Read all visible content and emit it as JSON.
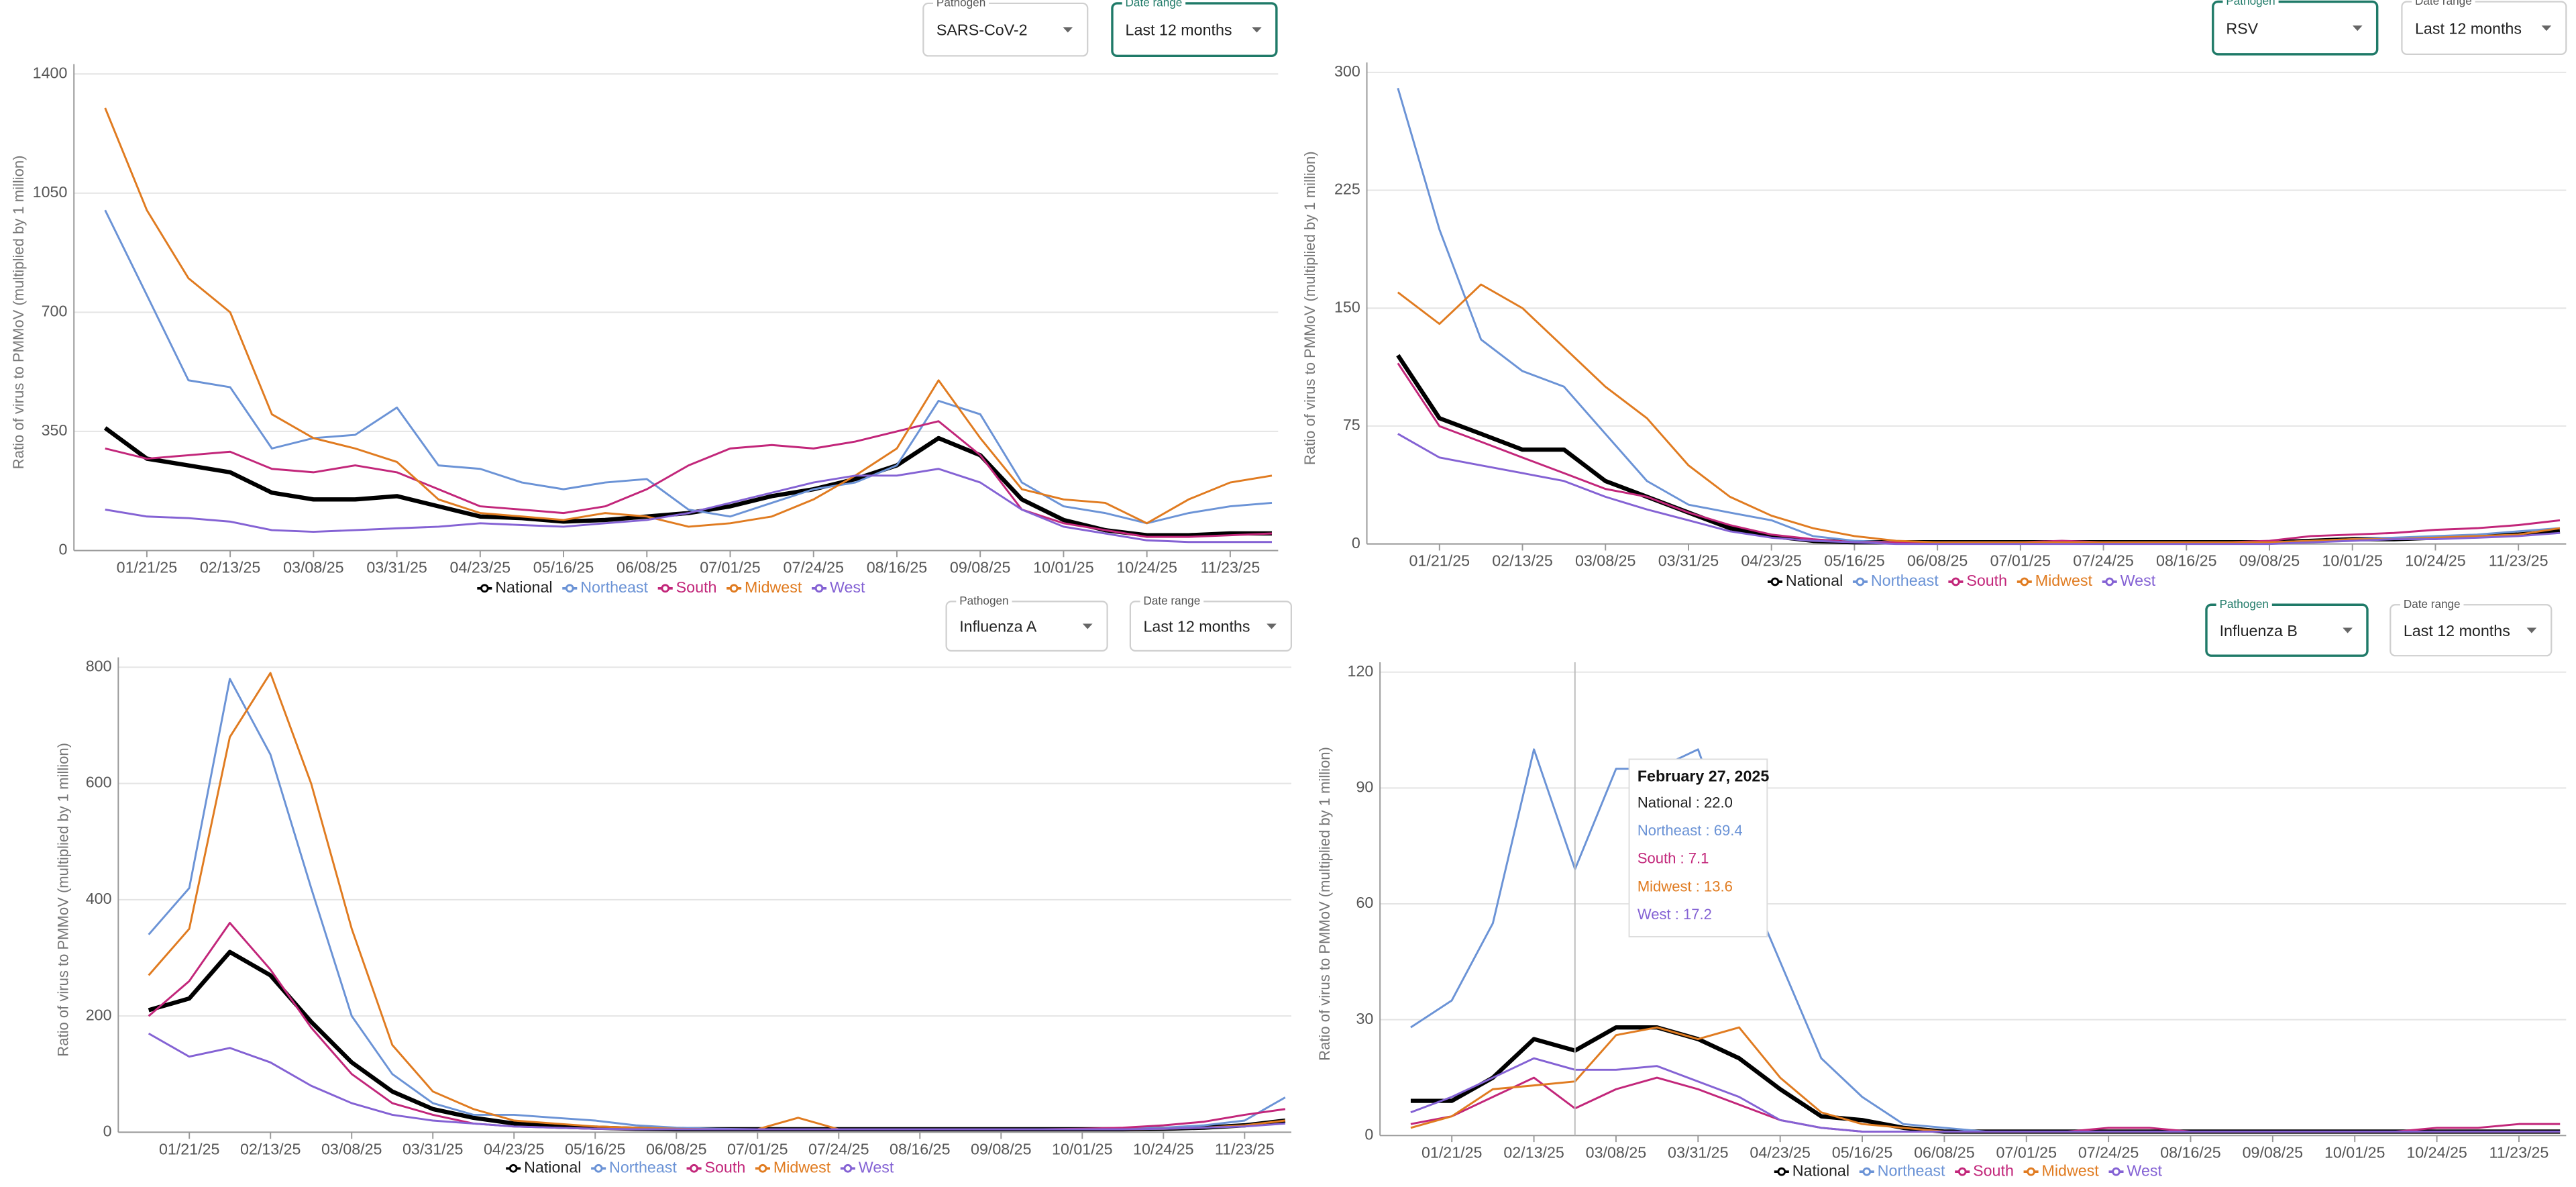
{
  "chart_data": [
    {
      "type": "line",
      "y_label": "Ratio of virus to PMMoV (multiplied by 1 million)",
      "controls": [
        {
          "label": "Pathogen",
          "value": "SARS-CoV-2",
          "focused": false
        },
        {
          "label": "Date range",
          "value": "Last 12 months",
          "focused": true
        }
      ],
      "categories": [
        null,
        "01/21/25",
        null,
        "02/13/25",
        null,
        "03/08/25",
        null,
        "03/31/25",
        null,
        "04/23/25",
        null,
        "05/16/25",
        null,
        "06/08/25",
        null,
        "07/01/25",
        null,
        "07/24/25",
        null,
        "08/16/25",
        null,
        "09/08/25",
        null,
        "10/01/25",
        null,
        "10/24/25",
        null,
        "11/23/25",
        null
      ],
      "ylim": [
        0,
        1400
      ],
      "yticks": [
        0,
        350,
        700,
        1050,
        1400
      ],
      "grid": true,
      "series": [
        {
          "name": "National",
          "color": "#000000",
          "values": [
            360,
            270,
            250,
            230,
            170,
            150,
            150,
            160,
            130,
            100,
            95,
            85,
            90,
            100,
            110,
            130,
            160,
            180,
            210,
            250,
            330,
            280,
            150,
            90,
            60,
            45,
            45,
            50,
            50
          ]
        },
        {
          "name": "Northeast",
          "color": "#6b93d6",
          "values": [
            1000,
            750,
            500,
            480,
            300,
            330,
            340,
            420,
            250,
            240,
            200,
            180,
            200,
            210,
            120,
            100,
            140,
            180,
            200,
            250,
            440,
            400,
            200,
            130,
            110,
            80,
            110,
            130,
            140
          ]
        },
        {
          "name": "South",
          "color": "#c2267a",
          "values": [
            300,
            270,
            280,
            290,
            240,
            230,
            250,
            230,
            180,
            130,
            120,
            110,
            130,
            180,
            250,
            300,
            310,
            300,
            320,
            350,
            380,
            280,
            120,
            80,
            60,
            40,
            40,
            45,
            50
          ]
        },
        {
          "name": "Midwest",
          "color": "#e07b20",
          "values": [
            1300,
            1000,
            800,
            700,
            400,
            330,
            300,
            260,
            150,
            110,
            100,
            90,
            110,
            100,
            70,
            80,
            100,
            150,
            220,
            300,
            500,
            330,
            180,
            150,
            140,
            80,
            150,
            200,
            220
          ]
        },
        {
          "name": "West",
          "color": "#8462d4",
          "values": [
            120,
            100,
            95,
            85,
            60,
            55,
            60,
            65,
            70,
            80,
            75,
            70,
            80,
            90,
            110,
            140,
            170,
            200,
            220,
            220,
            240,
            200,
            120,
            70,
            50,
            30,
            25,
            25,
            25
          ]
        }
      ]
    },
    {
      "type": "line",
      "y_label": "Ratio of virus to PMMoV (multiplied by 1 million)",
      "controls": [
        {
          "label": "Pathogen",
          "value": "RSV",
          "focused": true
        },
        {
          "label": "Date range",
          "value": "Last 12 months",
          "focused": false
        }
      ],
      "categories": [
        null,
        "01/21/25",
        null,
        "02/13/25",
        null,
        "03/08/25",
        null,
        "03/31/25",
        null,
        "04/23/25",
        null,
        "05/16/25",
        null,
        "06/08/25",
        null,
        "07/01/25",
        null,
        "07/24/25",
        null,
        "08/16/25",
        null,
        "09/08/25",
        null,
        "10/01/25",
        null,
        "10/24/25",
        null,
        "11/23/25",
        null
      ],
      "ylim": [
        0,
        300
      ],
      "yticks": [
        0,
        75,
        150,
        225,
        300
      ],
      "grid": true,
      "series": [
        {
          "name": "National",
          "color": "#000000",
          "values": [
            120,
            80,
            70,
            60,
            60,
            40,
            30,
            20,
            10,
            5,
            2,
            1,
            1,
            1,
            1,
            1,
            1,
            1,
            1,
            1,
            1,
            1,
            2,
            3,
            3,
            4,
            5,
            6,
            8
          ]
        },
        {
          "name": "Northeast",
          "color": "#6b93d6",
          "values": [
            290,
            200,
            130,
            110,
            100,
            70,
            40,
            25,
            20,
            15,
            5,
            2,
            1,
            1,
            1,
            1,
            1,
            1,
            1,
            1,
            1,
            1,
            2,
            3,
            4,
            5,
            6,
            8,
            10
          ]
        },
        {
          "name": "South",
          "color": "#c2267a",
          "values": [
            115,
            75,
            65,
            55,
            45,
            35,
            30,
            20,
            12,
            6,
            3,
            1,
            1,
            1,
            1,
            1,
            2,
            1,
            1,
            1,
            1,
            2,
            5,
            6,
            7,
            9,
            10,
            12,
            15
          ]
        },
        {
          "name": "Midwest",
          "color": "#e07b20",
          "values": [
            160,
            140,
            165,
            150,
            125,
            100,
            80,
            50,
            30,
            18,
            10,
            5,
            2,
            1,
            1,
            1,
            1,
            1,
            1,
            1,
            1,
            1,
            2,
            3,
            3,
            4,
            5,
            6,
            10
          ]
        },
        {
          "name": "West",
          "color": "#8462d4",
          "values": [
            70,
            55,
            50,
            45,
            40,
            30,
            22,
            15,
            8,
            4,
            2,
            1,
            0,
            0,
            0,
            0,
            0,
            0,
            0,
            0,
            0,
            0,
            1,
            2,
            3,
            3,
            4,
            5,
            7
          ]
        }
      ]
    },
    {
      "type": "line",
      "y_label": "Ratio of virus to PMMoV (multiplied by 1 million)",
      "controls": [
        {
          "label": "Pathogen",
          "value": "Influenza A",
          "focused": false
        },
        {
          "label": "Date range",
          "value": "Last 12 months",
          "focused": false
        }
      ],
      "categories": [
        null,
        "01/21/25",
        null,
        "02/13/25",
        null,
        "03/08/25",
        null,
        "03/31/25",
        null,
        "04/23/25",
        null,
        "05/16/25",
        null,
        "06/08/25",
        null,
        "07/01/25",
        null,
        "07/24/25",
        null,
        "08/16/25",
        null,
        "09/08/25",
        null,
        "10/01/25",
        null,
        "10/24/25",
        null,
        "11/23/25",
        null
      ],
      "ylim": [
        0,
        800
      ],
      "yticks": [
        0,
        200,
        400,
        600,
        800
      ],
      "grid": true,
      "series": [
        {
          "name": "National",
          "color": "#000000",
          "values": [
            210,
            230,
            310,
            270,
            190,
            120,
            70,
            40,
            25,
            15,
            10,
            8,
            6,
            5,
            5,
            5,
            5,
            5,
            5,
            5,
            5,
            5,
            5,
            5,
            5,
            6,
            8,
            12,
            20
          ]
        },
        {
          "name": "Northeast",
          "color": "#6b93d6",
          "values": [
            340,
            420,
            780,
            650,
            420,
            200,
            100,
            50,
            30,
            30,
            25,
            20,
            12,
            8,
            6,
            5,
            5,
            5,
            5,
            5,
            5,
            5,
            5,
            5,
            6,
            8,
            12,
            20,
            60
          ]
        },
        {
          "name": "South",
          "color": "#c2267a",
          "values": [
            200,
            260,
            360,
            280,
            180,
            100,
            50,
            30,
            15,
            10,
            8,
            6,
            5,
            5,
            5,
            5,
            5,
            5,
            5,
            5,
            5,
            5,
            5,
            6,
            8,
            12,
            18,
            30,
            40
          ]
        },
        {
          "name": "Midwest",
          "color": "#e07b20",
          "values": [
            270,
            350,
            680,
            790,
            600,
            350,
            150,
            70,
            40,
            20,
            15,
            10,
            8,
            6,
            5,
            5,
            25,
            5,
            5,
            5,
            5,
            5,
            5,
            5,
            5,
            6,
            8,
            12,
            20
          ]
        },
        {
          "name": "West",
          "color": "#8462d4",
          "values": [
            170,
            130,
            145,
            120,
            80,
            50,
            30,
            20,
            15,
            10,
            8,
            6,
            5,
            5,
            5,
            5,
            5,
            5,
            5,
            5,
            5,
            5,
            5,
            5,
            5,
            6,
            8,
            10,
            15
          ]
        }
      ]
    },
    {
      "type": "line",
      "y_label": "Ratio of virus to PMMoV (multiplied by 1 million)",
      "controls": [
        {
          "label": "Pathogen",
          "value": "Influenza B",
          "focused": true
        },
        {
          "label": "Date range",
          "value": "Last 12 months",
          "focused": false
        }
      ],
      "categories": [
        null,
        "01/21/25",
        null,
        "02/13/25",
        null,
        "03/08/25",
        null,
        "03/31/25",
        null,
        "04/23/25",
        null,
        "05/16/25",
        null,
        "06/08/25",
        null,
        "07/01/25",
        null,
        "07/24/25",
        null,
        "08/16/25",
        null,
        "09/08/25",
        null,
        "10/01/25",
        null,
        "10/24/25",
        null,
        "11/23/25",
        null
      ],
      "ylim": [
        0,
        120
      ],
      "yticks": [
        0,
        30,
        60,
        90,
        120
      ],
      "grid": true,
      "series": [
        {
          "name": "National",
          "color": "#000000",
          "values": [
            9,
            9,
            15,
            25,
            22,
            28,
            28,
            25,
            20,
            12,
            5,
            4,
            2,
            1,
            1,
            1,
            1,
            1,
            1,
            1,
            1,
            1,
            1,
            1,
            1,
            1,
            1,
            1,
            1
          ]
        },
        {
          "name": "Northeast",
          "color": "#6b93d6",
          "values": [
            28,
            35,
            55,
            100,
            69,
            95,
            95,
            100,
            70,
            45,
            20,
            10,
            3,
            2,
            1,
            1,
            1,
            1,
            1,
            1,
            1,
            1,
            1,
            1,
            1,
            1,
            1,
            1,
            1
          ]
        },
        {
          "name": "South",
          "color": "#c2267a",
          "values": [
            3,
            5,
            10,
            15,
            7,
            12,
            15,
            12,
            8,
            4,
            2,
            1,
            1,
            1,
            1,
            1,
            1,
            2,
            2,
            1,
            1,
            1,
            1,
            1,
            1,
            2,
            2,
            3,
            3
          ]
        },
        {
          "name": "Midwest",
          "color": "#e07b20",
          "values": [
            2,
            5,
            12,
            13,
            14,
            26,
            28,
            25,
            28,
            15,
            6,
            3,
            2,
            1,
            1,
            1,
            1,
            1,
            1,
            1,
            1,
            1,
            1,
            1,
            1,
            1,
            1,
            1,
            1
          ]
        },
        {
          "name": "West",
          "color": "#8462d4",
          "values": [
            6,
            10,
            15,
            20,
            17,
            17,
            18,
            14,
            10,
            4,
            2,
            1,
            1,
            1,
            1,
            1,
            1,
            1,
            1,
            1,
            1,
            1,
            1,
            1,
            1,
            1,
            1,
            1,
            1
          ]
        }
      ],
      "tooltip": {
        "title": "February 27, 2025",
        "items": [
          "National : 22.0",
          "Northeast : 69.4",
          "South : 7.1",
          "Midwest : 13.6",
          "West : 17.2"
        ]
      }
    }
  ]
}
